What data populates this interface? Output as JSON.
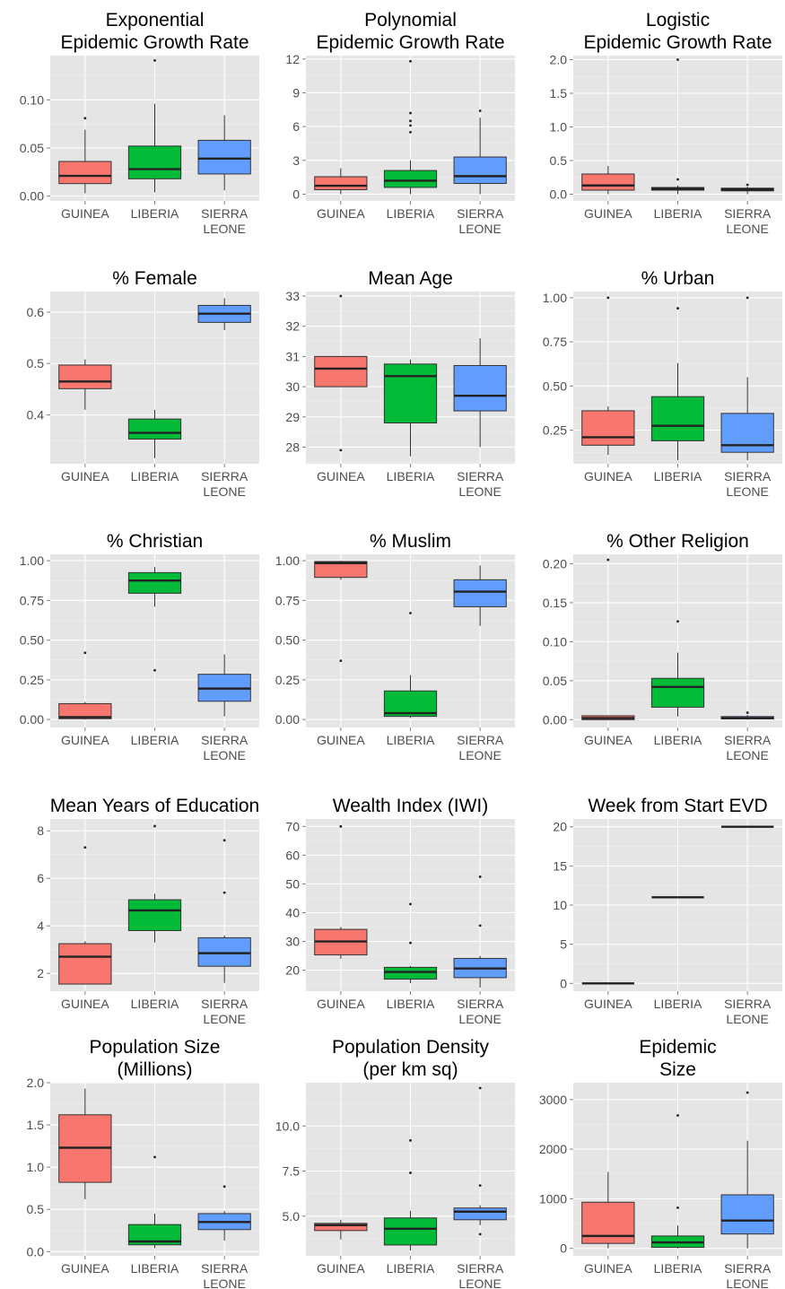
{
  "chart_data": [
    {
      "type": "box",
      "title": [
        "Exponential",
        "Epidemic Growth Rate"
      ],
      "categories": [
        "GUINEA",
        "LIBERIA",
        "SIERRA LEONE"
      ],
      "yticks": [
        0.0,
        0.05,
        0.1
      ],
      "ytick_labels": [
        "0.00",
        "0.05",
        "0.10"
      ],
      "ylim": [
        -0.005,
        0.146
      ],
      "colors": [
        "#F8766D",
        "#00BA38",
        "#619CFF"
      ],
      "boxes": [
        {
          "min": 0.003,
          "q1": 0.013,
          "median": 0.021,
          "q3": 0.036,
          "max": 0.069,
          "outliers": [
            0.081
          ]
        },
        {
          "min": 0.004,
          "q1": 0.018,
          "median": 0.028,
          "q3": 0.052,
          "max": 0.096,
          "outliers": [
            0.141
          ]
        },
        {
          "min": 0.006,
          "q1": 0.023,
          "median": 0.039,
          "q3": 0.058,
          "max": 0.084,
          "outliers": []
        }
      ]
    },
    {
      "type": "box",
      "title": [
        "Polynomial",
        "Epidemic Growth Rate"
      ],
      "categories": [
        "GUINEA",
        "LIBERIA",
        "SIERRA LEONE"
      ],
      "yticks": [
        0,
        3,
        6,
        9,
        12
      ],
      "ytick_labels": [
        "0",
        "3",
        "6",
        "9",
        "12"
      ],
      "ylim": [
        -0.6,
        12.3
      ],
      "colors": [
        "#F8766D",
        "#00BA38",
        "#619CFF"
      ],
      "boxes": [
        {
          "min": 0.0,
          "q1": 0.4,
          "median": 0.75,
          "q3": 1.55,
          "max": 2.3,
          "outliers": []
        },
        {
          "min": 0.0,
          "q1": 0.6,
          "median": 1.2,
          "q3": 2.1,
          "max": 3.0,
          "outliers": [
            5.5,
            6.1,
            6.5,
            7.2,
            11.8
          ]
        },
        {
          "min": 0.0,
          "q1": 0.95,
          "median": 1.6,
          "q3": 3.3,
          "max": 6.8,
          "outliers": [
            7.4
          ]
        }
      ]
    },
    {
      "type": "box",
      "title": [
        "Logistic",
        "Epidemic Growth Rate"
      ],
      "categories": [
        "GUINEA",
        "LIBERIA",
        "SIERRA LEONE"
      ],
      "yticks": [
        0.0,
        0.5,
        1.0,
        1.5,
        2.0
      ],
      "ytick_labels": [
        "0.0",
        "0.5",
        "1.0",
        "1.5",
        "2.0"
      ],
      "ylim": [
        -0.1,
        2.06
      ],
      "colors": [
        "#F8766D",
        "#00BA38",
        "#619CFF"
      ],
      "boxes": [
        {
          "min": 0.0,
          "q1": 0.06,
          "median": 0.13,
          "q3": 0.3,
          "max": 0.42,
          "outliers": []
        },
        {
          "min": 0.0,
          "q1": 0.06,
          "median": 0.08,
          "q3": 0.1,
          "max": 0.13,
          "outliers": [
            0.22,
            2.0
          ]
        },
        {
          "min": 0.0,
          "q1": 0.05,
          "median": 0.07,
          "q3": 0.09,
          "max": 0.11,
          "outliers": [
            0.14
          ]
        }
      ]
    },
    {
      "type": "box",
      "title": [
        "% Female"
      ],
      "categories": [
        "GUINEA",
        "LIBERIA",
        "SIERRA LEONE"
      ],
      "yticks": [
        0.4,
        0.5,
        0.6
      ],
      "ytick_labels": [
        "0.4",
        "0.5",
        "0.6"
      ],
      "ylim": [
        0.305,
        0.64
      ],
      "colors": [
        "#F8766D",
        "#00BA38",
        "#619CFF"
      ],
      "boxes": [
        {
          "min": 0.41,
          "q1": 0.451,
          "median": 0.465,
          "q3": 0.497,
          "max": 0.508,
          "outliers": []
        },
        {
          "min": 0.316,
          "q1": 0.353,
          "median": 0.365,
          "q3": 0.392,
          "max": 0.41,
          "outliers": []
        },
        {
          "min": 0.565,
          "q1": 0.58,
          "median": 0.597,
          "q3": 0.613,
          "max": 0.627,
          "outliers": []
        }
      ]
    },
    {
      "type": "box",
      "title": [
        "Mean Age"
      ],
      "categories": [
        "GUINEA",
        "LIBERIA",
        "SIERRA LEONE"
      ],
      "yticks": [
        28,
        29,
        30,
        31,
        32,
        33
      ],
      "ytick_labels": [
        "28",
        "29",
        "30",
        "31",
        "32",
        "33"
      ],
      "ylim": [
        27.45,
        33.15
      ],
      "colors": [
        "#F8766D",
        "#00BA38",
        "#619CFF"
      ],
      "boxes": [
        {
          "min": 30.0,
          "q1": 30.0,
          "median": 30.6,
          "q3": 31.0,
          "max": 31.0,
          "outliers": [
            27.9,
            33.0
          ]
        },
        {
          "min": 27.7,
          "q1": 28.8,
          "median": 30.35,
          "q3": 30.75,
          "max": 30.9,
          "outliers": []
        },
        {
          "min": 28.0,
          "q1": 29.2,
          "median": 29.7,
          "q3": 30.7,
          "max": 31.6,
          "outliers": []
        }
      ]
    },
    {
      "type": "box",
      "title": [
        "% Urban"
      ],
      "categories": [
        "GUINEA",
        "LIBERIA",
        "SIERRA LEONE"
      ],
      "yticks": [
        0.25,
        0.5,
        0.75,
        1.0
      ],
      "ytick_labels": [
        "0.25",
        "0.50",
        "0.75",
        "1.00"
      ],
      "ylim": [
        0.06,
        1.035
      ],
      "colors": [
        "#F8766D",
        "#00BA38",
        "#619CFF"
      ],
      "boxes": [
        {
          "min": 0.11,
          "q1": 0.165,
          "median": 0.21,
          "q3": 0.36,
          "max": 0.385,
          "outliers": [
            1.0
          ]
        },
        {
          "min": 0.08,
          "q1": 0.19,
          "median": 0.275,
          "q3": 0.44,
          "max": 0.63,
          "outliers": [
            0.94
          ]
        },
        {
          "min": 0.08,
          "q1": 0.125,
          "median": 0.165,
          "q3": 0.345,
          "max": 0.55,
          "outliers": [
            1.0
          ]
        }
      ]
    },
    {
      "type": "box",
      "title": [
        "% Christian"
      ],
      "categories": [
        "GUINEA",
        "LIBERIA",
        "SIERRA LEONE"
      ],
      "yticks": [
        0.0,
        0.25,
        0.5,
        0.75,
        1.0
      ],
      "ytick_labels": [
        "0.00",
        "0.25",
        "0.50",
        "0.75",
        "1.00"
      ],
      "ylim": [
        -0.05,
        1.04
      ],
      "colors": [
        "#F8766D",
        "#00BA38",
        "#619CFF"
      ],
      "boxes": [
        {
          "min": 0.0,
          "q1": 0.005,
          "median": 0.015,
          "q3": 0.1,
          "max": 0.11,
          "outliers": [
            0.42
          ]
        },
        {
          "min": 0.71,
          "q1": 0.795,
          "median": 0.875,
          "q3": 0.925,
          "max": 0.96,
          "outliers": [
            0.31
          ]
        },
        {
          "min": 0.02,
          "q1": 0.115,
          "median": 0.195,
          "q3": 0.285,
          "max": 0.41,
          "outliers": []
        }
      ]
    },
    {
      "type": "box",
      "title": [
        "% Muslim"
      ],
      "categories": [
        "GUINEA",
        "LIBERIA",
        "SIERRA LEONE"
      ],
      "yticks": [
        0.0,
        0.25,
        0.5,
        0.75,
        1.0
      ],
      "ytick_labels": [
        "0.00",
        "0.25",
        "0.50",
        "0.75",
        "1.00"
      ],
      "ylim": [
        -0.05,
        1.04
      ],
      "colors": [
        "#F8766D",
        "#00BA38",
        "#619CFF"
      ],
      "boxes": [
        {
          "min": 0.88,
          "q1": 0.895,
          "median": 0.985,
          "q3": 0.995,
          "max": 1.0,
          "outliers": [
            0.37
          ]
        },
        {
          "min": 0.01,
          "q1": 0.02,
          "median": 0.04,
          "q3": 0.18,
          "max": 0.28,
          "outliers": [
            0.67
          ]
        },
        {
          "min": 0.59,
          "q1": 0.71,
          "median": 0.805,
          "q3": 0.88,
          "max": 0.97,
          "outliers": []
        }
      ]
    },
    {
      "type": "box",
      "title": [
        "% Other Religion"
      ],
      "categories": [
        "GUINEA",
        "LIBERIA",
        "SIERRA LEONE"
      ],
      "yticks": [
        0.0,
        0.05,
        0.1,
        0.15,
        0.2
      ],
      "ytick_labels": [
        "0.00",
        "0.05",
        "0.10",
        "0.15",
        "0.20"
      ],
      "ylim": [
        -0.01,
        0.212
      ],
      "colors": [
        "#F8766D",
        "#00BA38",
        "#619CFF"
      ],
      "boxes": [
        {
          "min": 0.0,
          "q1": 0.0,
          "median": 0.002,
          "q3": 0.005,
          "max": 0.005,
          "outliers": [
            0.205
          ]
        },
        {
          "min": 0.004,
          "q1": 0.016,
          "median": 0.042,
          "q3": 0.053,
          "max": 0.086,
          "outliers": [
            0.126
          ]
        },
        {
          "min": 0.0,
          "q1": 0.001,
          "median": 0.002,
          "q3": 0.004,
          "max": 0.006,
          "outliers": [
            0.009
          ]
        }
      ]
    },
    {
      "type": "box",
      "title": [
        "Mean Years of Education"
      ],
      "categories": [
        "GUINEA",
        "LIBERIA",
        "SIERRA LEONE"
      ],
      "yticks": [
        2,
        4,
        6,
        8
      ],
      "ytick_labels": [
        "2",
        "4",
        "6",
        "8"
      ],
      "ylim": [
        1.25,
        8.5
      ],
      "colors": [
        "#F8766D",
        "#00BA38",
        "#619CFF"
      ],
      "boxes": [
        {
          "min": 1.55,
          "q1": 1.55,
          "median": 2.7,
          "q3": 3.25,
          "max": 3.35,
          "outliers": [
            7.3
          ]
        },
        {
          "min": 3.3,
          "q1": 3.8,
          "median": 4.65,
          "q3": 5.1,
          "max": 5.35,
          "outliers": [
            8.2
          ]
        },
        {
          "min": 1.6,
          "q1": 2.3,
          "median": 2.85,
          "q3": 3.5,
          "max": 3.6,
          "outliers": [
            5.4,
            7.6
          ]
        }
      ]
    },
    {
      "type": "box",
      "title": [
        "Wealth Index (IWI)"
      ],
      "categories": [
        "GUINEA",
        "LIBERIA",
        "SIERRA LEONE"
      ],
      "yticks": [
        20,
        30,
        40,
        50,
        60,
        70
      ],
      "ytick_labels": [
        "20",
        "30",
        "40",
        "50",
        "60",
        "70"
      ],
      "ylim": [
        12.7,
        72.6
      ],
      "colors": [
        "#F8766D",
        "#00BA38",
        "#619CFF"
      ],
      "boxes": [
        {
          "min": 24.0,
          "q1": 25.3,
          "median": 30.0,
          "q3": 34.2,
          "max": 35.0,
          "outliers": [
            70.0
          ]
        },
        {
          "min": 15.5,
          "q1": 16.9,
          "median": 19.4,
          "q3": 21.0,
          "max": 21.5,
          "outliers": [
            29.5,
            43.0
          ]
        },
        {
          "min": 14.0,
          "q1": 17.4,
          "median": 20.6,
          "q3": 24.1,
          "max": 25.0,
          "outliers": [
            35.5,
            52.5
          ]
        }
      ]
    },
    {
      "type": "box",
      "title": [
        "Week from Start EVD"
      ],
      "categories": [
        "GUINEA",
        "LIBERIA",
        "SIERRA LEONE"
      ],
      "yticks": [
        0,
        5,
        10,
        15,
        20
      ],
      "ytick_labels": [
        "0",
        "5",
        "10",
        "15",
        "20"
      ],
      "ylim": [
        -1.0,
        21.0
      ],
      "colors": [
        "#F8766D",
        "#00BA38",
        "#619CFF"
      ],
      "boxes": [
        {
          "min": 0,
          "q1": 0,
          "median": 0,
          "q3": 0,
          "max": 0,
          "outliers": []
        },
        {
          "min": 11,
          "q1": 11,
          "median": 11,
          "q3": 11,
          "max": 11,
          "outliers": []
        },
        {
          "min": 20,
          "q1": 20,
          "median": 20,
          "q3": 20,
          "max": 20,
          "outliers": []
        }
      ]
    },
    {
      "type": "box",
      "title": [
        "Population Size",
        "(Millions)"
      ],
      "categories": [
        "GUINEA",
        "LIBERIA",
        "SIERRA LEONE"
      ],
      "yticks": [
        0.0,
        0.5,
        1.0,
        1.5,
        2.0
      ],
      "ytick_labels": [
        "0.0",
        "0.5",
        "1.0",
        "1.5",
        "2.0"
      ],
      "ylim": [
        -0.05,
        2.0
      ],
      "colors": [
        "#F8766D",
        "#00BA38",
        "#619CFF"
      ],
      "boxes": [
        {
          "min": 0.62,
          "q1": 0.82,
          "median": 1.23,
          "q3": 1.62,
          "max": 1.93,
          "outliers": []
        },
        {
          "min": 0.04,
          "q1": 0.08,
          "median": 0.12,
          "q3": 0.32,
          "max": 0.45,
          "outliers": [
            1.12
          ]
        },
        {
          "min": 0.13,
          "q1": 0.26,
          "median": 0.35,
          "q3": 0.45,
          "max": 0.48,
          "outliers": [
            0.77
          ]
        }
      ]
    },
    {
      "type": "box",
      "title": [
        "Population Density",
        "(per km sq)"
      ],
      "categories": [
        "GUINEA",
        "LIBERIA",
        "SIERRA LEONE"
      ],
      "yticks": [
        5.0,
        7.5,
        10.0
      ],
      "ytick_labels": [
        "5.0",
        "7.5",
        "10.0"
      ],
      "ylim": [
        2.8,
        12.4
      ],
      "colors": [
        "#F8766D",
        "#00BA38",
        "#619CFF"
      ],
      "boxes": [
        {
          "min": 3.7,
          "q1": 4.2,
          "median": 4.5,
          "q3": 4.6,
          "max": 4.8,
          "outliers": []
        },
        {
          "min": 3.1,
          "q1": 3.4,
          "median": 4.3,
          "q3": 4.9,
          "max": 5.3,
          "outliers": [
            7.4,
            9.2
          ]
        },
        {
          "min": 4.5,
          "q1": 4.8,
          "median": 5.25,
          "q3": 5.45,
          "max": 5.6,
          "outliers": [
            4.0,
            6.7,
            12.1
          ]
        }
      ]
    },
    {
      "type": "box",
      "title": [
        "Epidemic",
        "Size"
      ],
      "categories": [
        "GUINEA",
        "LIBERIA",
        "SIERRA LEONE"
      ],
      "yticks": [
        0,
        1000,
        2000,
        3000
      ],
      "ytick_labels": [
        "0",
        "1000",
        "2000",
        "3000"
      ],
      "ylim": [
        -150,
        3340
      ],
      "colors": [
        "#F8766D",
        "#00BA38",
        "#619CFF"
      ],
      "boxes": [
        {
          "min": 0,
          "q1": 100,
          "median": 250,
          "q3": 930,
          "max": 1540,
          "outliers": []
        },
        {
          "min": 0,
          "q1": 20,
          "median": 120,
          "q3": 250,
          "max": 460,
          "outliers": [
            820,
            2680
          ]
        },
        {
          "min": 0,
          "q1": 290,
          "median": 560,
          "q3": 1080,
          "max": 2170,
          "outliers": [
            3140
          ]
        }
      ]
    }
  ]
}
